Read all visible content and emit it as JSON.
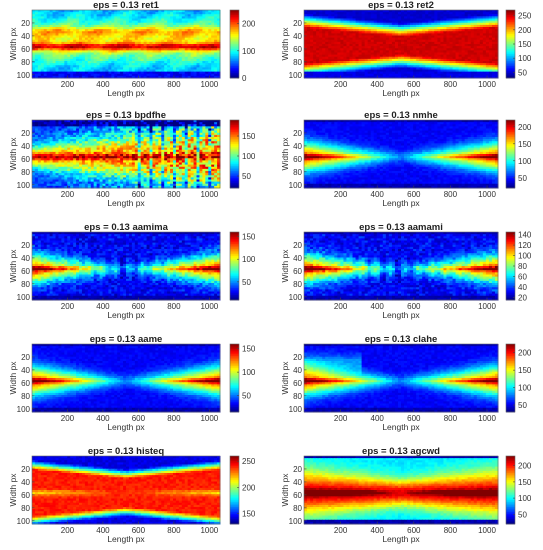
{
  "panels": [
    {
      "title": "eps = 0.13 ret1",
      "xlabel": "Length px",
      "ylabel": "Width px",
      "xticks": [
        200,
        400,
        600,
        800,
        1000
      ],
      "yticks": [
        20,
        40,
        60,
        80,
        100
      ],
      "cticks": [
        0,
        100,
        200
      ],
      "clim": [
        0,
        250
      ],
      "pattern": "ret1"
    },
    {
      "title": "eps = 0.13 ret2",
      "xlabel": "Length px",
      "ylabel": "Width px",
      "xticks": [
        200,
        400,
        600,
        800,
        1000
      ],
      "yticks": [
        20,
        40,
        60,
        80,
        100
      ],
      "cticks": [
        50,
        100,
        150,
        200,
        250
      ],
      "clim": [
        30,
        270
      ],
      "pattern": "ret2"
    },
    {
      "title": "eps = 0.13 bpdfhe",
      "xlabel": "Length px",
      "ylabel": "Width px",
      "xticks": [
        200,
        400,
        600,
        800,
        1000
      ],
      "yticks": [
        20,
        40,
        60,
        80,
        100
      ],
      "cticks": [
        50,
        100,
        150
      ],
      "clim": [
        20,
        190
      ],
      "pattern": "bpdfhe"
    },
    {
      "title": "eps = 0.13 nmhe",
      "xlabel": "Length px",
      "ylabel": "Width px",
      "xticks": [
        200,
        400,
        600,
        800,
        1000
      ],
      "yticks": [
        20,
        40,
        60,
        80,
        100
      ],
      "cticks": [
        50,
        100,
        150,
        200
      ],
      "clim": [
        20,
        220
      ],
      "pattern": "nmhe"
    },
    {
      "title": "eps = 0.13 aamima",
      "xlabel": "Length px",
      "ylabel": "Width px",
      "xticks": [
        200,
        400,
        600,
        800,
        1000
      ],
      "yticks": [
        20,
        40,
        60,
        80,
        100
      ],
      "cticks": [
        50,
        100,
        150
      ],
      "clim": [
        10,
        160
      ],
      "pattern": "aamima"
    },
    {
      "title": "eps = 0.13 aamami",
      "xlabel": "Length px",
      "ylabel": "Width px",
      "xticks": [
        200,
        400,
        600,
        800,
        1000
      ],
      "yticks": [
        20,
        40,
        60,
        80,
        100
      ],
      "cticks": [
        20,
        40,
        60,
        80,
        100,
        120,
        140
      ],
      "clim": [
        15,
        145
      ],
      "pattern": "aamami"
    },
    {
      "title": "eps = 0.13 aame",
      "xlabel": "Length px",
      "ylabel": "Width px",
      "xticks": [
        200,
        400,
        600,
        800,
        1000
      ],
      "yticks": [
        20,
        40,
        60,
        80,
        100
      ],
      "cticks": [
        50,
        100,
        150
      ],
      "clim": [
        15,
        160
      ],
      "pattern": "aame"
    },
    {
      "title": "eps = 0.13 clahe",
      "xlabel": "Length px",
      "ylabel": "Width px",
      "xticks": [
        200,
        400,
        600,
        800,
        1000
      ],
      "yticks": [
        20,
        40,
        60,
        80,
        100
      ],
      "cticks": [
        50,
        100,
        150,
        200
      ],
      "clim": [
        30,
        225
      ],
      "pattern": "clahe"
    },
    {
      "title": "eps = 0.13 histeq",
      "xlabel": "Length px",
      "ylabel": "Width px",
      "xticks": [
        200,
        400,
        600,
        800,
        1000
      ],
      "yticks": [
        20,
        40,
        60,
        80,
        100
      ],
      "cticks": [
        150,
        200,
        250
      ],
      "clim": [
        130,
        260
      ],
      "pattern": "histeq"
    },
    {
      "title": "eps = 0.13 agcwd",
      "xlabel": "Length px",
      "ylabel": "Width px",
      "xticks": [
        200,
        400,
        600,
        800,
        1000
      ],
      "yticks": [
        20,
        40,
        60,
        80,
        100
      ],
      "cticks": [
        50,
        100,
        150,
        200
      ],
      "clim": [
        20,
        230
      ],
      "pattern": "agcwd"
    }
  ],
  "chart_data": {
    "type": "heatmap",
    "colormap": "jet",
    "x_range": [
      0,
      1060
    ],
    "y_range": [
      0,
      105
    ],
    "y_direction": "reversed",
    "layout": "5 rows x 2 columns"
  }
}
